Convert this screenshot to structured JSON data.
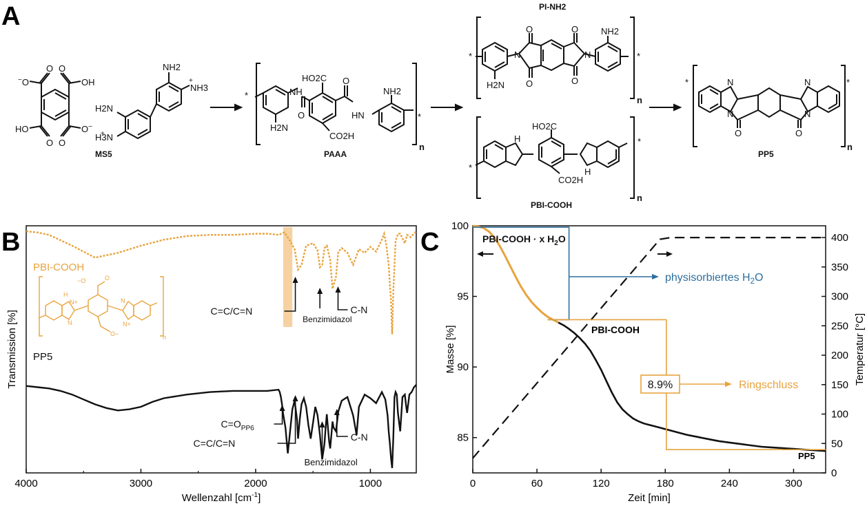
{
  "panel_labels": {
    "a": "A",
    "b": "B",
    "c": "C"
  },
  "panel_a": {
    "compounds": {
      "ms5": "MS5",
      "paaa": "PAAA",
      "pi_nh2": "PI-NH2",
      "pbi_cooh": "PBI-COOH",
      "pp5": "PP5"
    },
    "atom_labels": {
      "o": "O",
      "oh": "OH",
      "ho": "HO",
      "nh": "NH",
      "hn": "HN",
      "n": "N",
      "h": "H",
      "nh2": "NH2",
      "h2n": "H2N",
      "nh3": "NH3",
      "h3n": "H3N",
      "ho2c": "HO2C",
      "co2h": "CO2H",
      "star": "*",
      "n_sub": "n",
      "minus": "−",
      "plus": "+"
    }
  },
  "colors": {
    "orange": "#E8A33D",
    "blue": "#2E6F9E",
    "black": "#111111",
    "band": "#F6D2A2"
  },
  "chart_data": [
    {
      "panel": "B",
      "type": "line",
      "xlabel": "Wellenzahl [cm-1]",
      "ylabel": "Transmission [%]",
      "xlim": [
        4000,
        600
      ],
      "x_reversed": true,
      "xticks": [
        4000,
        3000,
        2000,
        1000
      ],
      "series": [
        {
          "name": "PBI-COOH",
          "color": "#E8A33D",
          "style": "dotted",
          "x": [
            4000,
            3900,
            3800,
            3600,
            3400,
            3200,
            3000,
            2800,
            2600,
            2400,
            2200,
            2000,
            1900,
            1800,
            1750,
            1700,
            1660,
            1630,
            1600,
            1560,
            1500,
            1460,
            1440,
            1420,
            1400,
            1380,
            1350,
            1330,
            1300,
            1280,
            1250,
            1200,
            1150,
            1100,
            1050,
            1000,
            950,
            900,
            880,
            860,
            840,
            830,
            820,
            810,
            800,
            780,
            760,
            740,
            720,
            700,
            680,
            650,
            600
          ],
          "y": [
            1.0,
            0.99,
            0.97,
            0.88,
            0.78,
            0.82,
            0.88,
            0.93,
            0.96,
            0.97,
            0.97,
            0.98,
            0.98,
            0.97,
            0.99,
            0.92,
            0.85,
            0.68,
            0.72,
            0.88,
            0.9,
            0.84,
            0.7,
            0.72,
            0.86,
            0.88,
            0.76,
            0.52,
            0.62,
            0.83,
            0.86,
            0.82,
            0.72,
            0.85,
            0.82,
            0.87,
            0.83,
            0.93,
            0.98,
            0.88,
            0.72,
            0.55,
            0.42,
            0.14,
            0.5,
            0.92,
            0.98,
            0.98,
            0.94,
            0.9,
            0.97,
            0.95,
            1.0
          ]
        },
        {
          "name": "PP5",
          "color": "#111111",
          "style": "solid",
          "x": [
            4000,
            3900,
            3800,
            3700,
            3600,
            3500,
            3400,
            3300,
            3200,
            3100,
            3000,
            2900,
            2800,
            2600,
            2400,
            2200,
            2000,
            1900,
            1800,
            1790,
            1780,
            1770,
            1760,
            1740,
            1720,
            1700,
            1680,
            1660,
            1640,
            1630,
            1615,
            1600,
            1580,
            1560,
            1540,
            1520,
            1500,
            1480,
            1460,
            1440,
            1420,
            1400,
            1390,
            1380,
            1360,
            1350,
            1340,
            1330,
            1320,
            1300,
            1280,
            1250,
            1200,
            1150,
            1120,
            1100,
            1050,
            1000,
            950,
            900,
            870,
            850,
            840,
            830,
            820,
            810,
            800,
            790,
            780,
            770,
            760,
            740,
            720,
            700,
            690,
            680,
            660,
            640,
            620,
            600
          ],
          "y": [
            0.67,
            0.66,
            0.65,
            0.63,
            0.6,
            0.56,
            0.52,
            0.49,
            0.47,
            0.48,
            0.5,
            0.54,
            0.57,
            0.6,
            0.62,
            0.63,
            0.63,
            0.63,
            0.64,
            0.62,
            0.58,
            0.52,
            0.44,
            0.33,
            0.12,
            0.3,
            0.48,
            0.55,
            0.4,
            0.24,
            0.4,
            0.52,
            0.57,
            0.5,
            0.35,
            0.24,
            0.37,
            0.5,
            0.43,
            0.27,
            0.07,
            0.2,
            0.33,
            0.44,
            0.22,
            0.16,
            0.27,
            0.38,
            0.33,
            0.3,
            0.46,
            0.55,
            0.58,
            0.43,
            0.27,
            0.5,
            0.6,
            0.57,
            0.53,
            0.62,
            0.56,
            0.43,
            0.3,
            0.2,
            0.08,
            0.0,
            0.25,
            0.58,
            0.62,
            0.6,
            0.45,
            0.3,
            0.58,
            0.6,
            0.52,
            0.45,
            0.6,
            0.62,
            0.66,
            0.68
          ]
        }
      ],
      "annotations": [
        {
          "text": "C=C/C=N",
          "series": "PBI-COOH",
          "x": 1630
        },
        {
          "text": "Benzimidazol",
          "series": "PBI-COOH",
          "x": 1440
        },
        {
          "text": "C-N",
          "series": "PBI-COOH",
          "x": 1330
        },
        {
          "text": "C=O",
          "sub": "PP6",
          "series": "PP5",
          "x": 1720
        },
        {
          "text": "C=C/C=N",
          "series": "PP5",
          "x": 1630
        },
        {
          "text": "Benzimidazol",
          "series": "PP5",
          "x": 1420
        },
        {
          "text": "C-N",
          "series": "PP5",
          "x": 1340
        }
      ],
      "highlight_band": [
        1760,
        1680
      ]
    },
    {
      "panel": "C",
      "type": "line",
      "xlabel": "Zeit [min]",
      "ylabel": "Masse [%]",
      "y2label": "Temperatur [°C]",
      "xlim": [
        0,
        330
      ],
      "ylim": [
        82.5,
        100
      ],
      "y2lim": [
        0,
        420
      ],
      "xticks": [
        0,
        60,
        120,
        180,
        240,
        300
      ],
      "yticks": [
        85,
        90,
        95,
        100
      ],
      "y2ticks": [
        0,
        50,
        100,
        150,
        200,
        250,
        300,
        350,
        400
      ],
      "series": [
        {
          "name": "Masse",
          "axis": "left",
          "x": [
            0,
            5,
            10,
            15,
            20,
            25,
            30,
            35,
            40,
            45,
            50,
            55,
            60,
            65,
            70,
            75,
            80,
            85,
            90,
            95,
            100,
            105,
            110,
            115,
            120,
            125,
            130,
            135,
            140,
            145,
            150,
            155,
            160,
            165,
            170,
            180,
            190,
            200,
            210,
            220,
            230,
            240,
            250,
            260,
            270,
            280,
            290,
            300,
            310,
            320,
            330
          ],
          "y": [
            100,
            99.95,
            99.85,
            99.6,
            99.2,
            98.6,
            97.9,
            97.15,
            96.4,
            95.7,
            95.1,
            94.6,
            94.2,
            93.85,
            93.55,
            93.35,
            93.15,
            92.95,
            92.7,
            92.4,
            92.05,
            91.65,
            91.15,
            90.5,
            89.8,
            89.0,
            88.2,
            87.5,
            87.0,
            86.65,
            86.35,
            86.15,
            86.0,
            85.9,
            85.8,
            85.6,
            85.4,
            85.2,
            85.05,
            84.9,
            84.75,
            84.65,
            84.55,
            84.45,
            84.35,
            84.3,
            84.25,
            84.2,
            84.15,
            84.1,
            84.05
          ]
        },
        {
          "name": "Temperatur",
          "axis": "right",
          "style": "dashed",
          "x": [
            0,
            175,
            185,
            330
          ],
          "y": [
            25,
            397,
            400,
            400
          ]
        }
      ],
      "labels": {
        "start": "PBI-COOH · x H2O",
        "mid": "PBI-COOH",
        "end": "PP5",
        "water": "physisorbiertes H2O",
        "ring": "Ringschluss",
        "loss": "8.9%"
      }
    }
  ]
}
